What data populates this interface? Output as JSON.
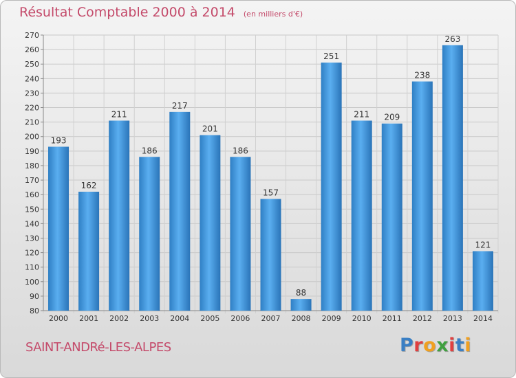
{
  "header": {
    "title": "Résultat Comptable 2000 à 2014",
    "subtitle": "(en milliers d'€)"
  },
  "footer": {
    "city": "SAINT-ANDRé-LES-ALPES",
    "logo": {
      "letters": [
        "P",
        "r",
        "o",
        "x",
        "i",
        "t",
        "i"
      ],
      "colors": [
        "#3a7fc4",
        "#e04040",
        "#f0a020",
        "#40a040",
        "#e04040",
        "#3a7fc4",
        "#f0a020"
      ]
    }
  },
  "chart_data": {
    "type": "bar",
    "title": "Résultat Comptable 2000 à 2014",
    "subtitle": "(en milliers d'€)",
    "categories": [
      "2000",
      "2001",
      "2002",
      "2003",
      "2004",
      "2005",
      "2006",
      "2007",
      "2008",
      "2009",
      "2010",
      "2011",
      "2012",
      "2013",
      "2014"
    ],
    "values": [
      193,
      162,
      211,
      186,
      217,
      201,
      186,
      157,
      88,
      251,
      211,
      209,
      238,
      263,
      121
    ],
    "ylim": [
      80,
      270
    ],
    "yticks": [
      80,
      90,
      100,
      110,
      120,
      130,
      140,
      150,
      160,
      170,
      180,
      190,
      200,
      210,
      220,
      230,
      240,
      250,
      260,
      270
    ],
    "grid": true,
    "legend": "none",
    "bar_color": "#3d91d8"
  }
}
